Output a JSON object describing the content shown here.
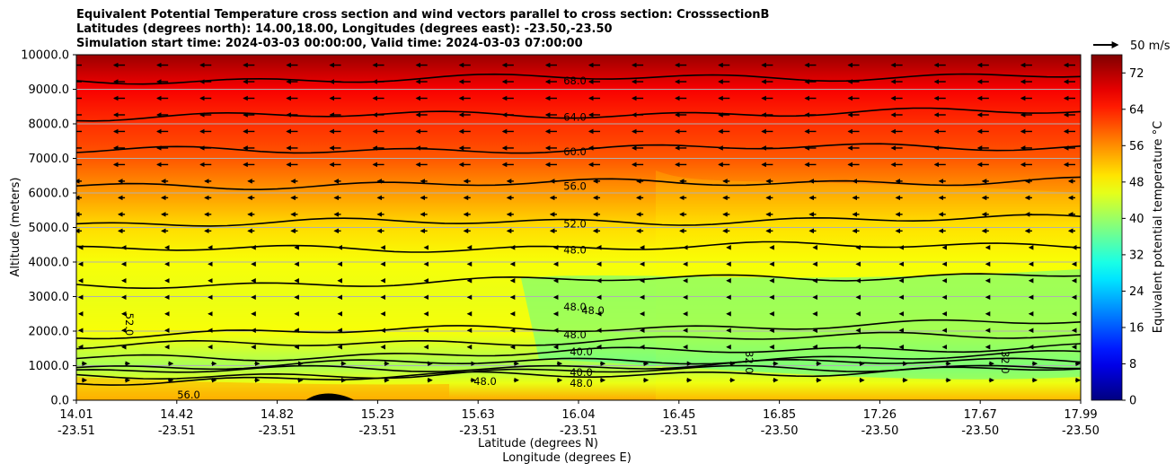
{
  "chart_data": {
    "type": "contourf",
    "title_lines": [
      "Equivalent Potential Temperature cross section and wind vectors parallel to cross section: CrosssectionB",
      "Latitudes (degrees north): 14.00,18.00, Longitudes (degrees east): -23.50,-23.50",
      "Simulation start time: 2024-03-03 00:00:00, Valid time: 2024-03-03 07:00:00"
    ],
    "ylabel": "Altitude (meters)",
    "xlabel_line1": "Latitude (degrees N)",
    "xlabel_line2": "Longitude (degrees E)",
    "ylim": [
      0,
      10000
    ],
    "y_ticks": [
      0,
      1000,
      2000,
      3000,
      4000,
      5000,
      6000,
      7000,
      8000,
      9000,
      10000
    ],
    "y_tick_labels": [
      "0.0",
      "1000.0",
      "2000.0",
      "3000.0",
      "4000.0",
      "5000.0",
      "6000.0",
      "7000.0",
      "8000.0",
      "9000.0",
      "10000.0"
    ],
    "xlim": [
      14.01,
      17.99
    ],
    "x_ticks": [
      {
        "lat": "14.01",
        "lon": "-23.51"
      },
      {
        "lat": "14.42",
        "lon": "-23.51"
      },
      {
        "lat": "14.82",
        "lon": "-23.51"
      },
      {
        "lat": "15.23",
        "lon": "-23.51"
      },
      {
        "lat": "15.63",
        "lon": "-23.51"
      },
      {
        "lat": "16.04",
        "lon": "-23.51"
      },
      {
        "lat": "16.45",
        "lon": "-23.51"
      },
      {
        "lat": "16.85",
        "lon": "-23.50"
      },
      {
        "lat": "17.26",
        "lon": "-23.50"
      },
      {
        "lat": "17.67",
        "lon": "-23.50"
      },
      {
        "lat": "17.99",
        "lon": "-23.50"
      }
    ],
    "colorbar": {
      "label": "Equivalent potential temperature $^\\circ$C",
      "label_display": "Equivalent potential temperature °C",
      "range": [
        0,
        76
      ],
      "ticks": [
        "0",
        "8",
        "16",
        "24",
        "32",
        "40",
        "48",
        "56",
        "64",
        "72"
      ],
      "colormap": "jet"
    },
    "quiver_key": {
      "label": "50 m/s",
      "speed": 50
    },
    "contour_labels": [
      {
        "text": "68.0",
        "altitude": 9250
      },
      {
        "text": "64.0",
        "altitude": 8200
      },
      {
        "text": "60.0",
        "altitude": 7200
      },
      {
        "text": "56.0",
        "altitude": 6200
      },
      {
        "text": "52.0",
        "altitude": 5100
      },
      {
        "text": "48.0",
        "altitude": 4350
      },
      {
        "text": "48.0",
        "altitude": 2700
      },
      {
        "text": "48.0",
        "altitude": 2600
      },
      {
        "text": "48.0",
        "altitude": 1900
      },
      {
        "text": "40.0",
        "altitude": 1400
      },
      {
        "text": "40.0",
        "altitude": 800
      },
      {
        "text": "48.0",
        "altitude": 550
      },
      {
        "text": "48.0",
        "altitude": 500
      },
      {
        "text": "52.0",
        "altitude": 2300
      },
      {
        "text": "56.0",
        "altitude": 150
      },
      {
        "text": "32.0",
        "altitude": 1200
      },
      {
        "text": "32.0",
        "altitude": 1200
      }
    ],
    "theta_e_profile_by_altitude": [
      {
        "altitude": 0,
        "value": 54
      },
      {
        "altitude": 500,
        "value": 46
      },
      {
        "altitude": 1000,
        "value": 41
      },
      {
        "altitude": 2000,
        "value": 47
      },
      {
        "altitude": 3000,
        "value": 46
      },
      {
        "altitude": 4000,
        "value": 47
      },
      {
        "altitude": 5000,
        "value": 50
      },
      {
        "altitude": 6000,
        "value": 55
      },
      {
        "altitude": 7000,
        "value": 60
      },
      {
        "altitude": 8000,
        "value": 63
      },
      {
        "altitude": 9000,
        "value": 67
      },
      {
        "altitude": 10000,
        "value": 74
      }
    ]
  }
}
